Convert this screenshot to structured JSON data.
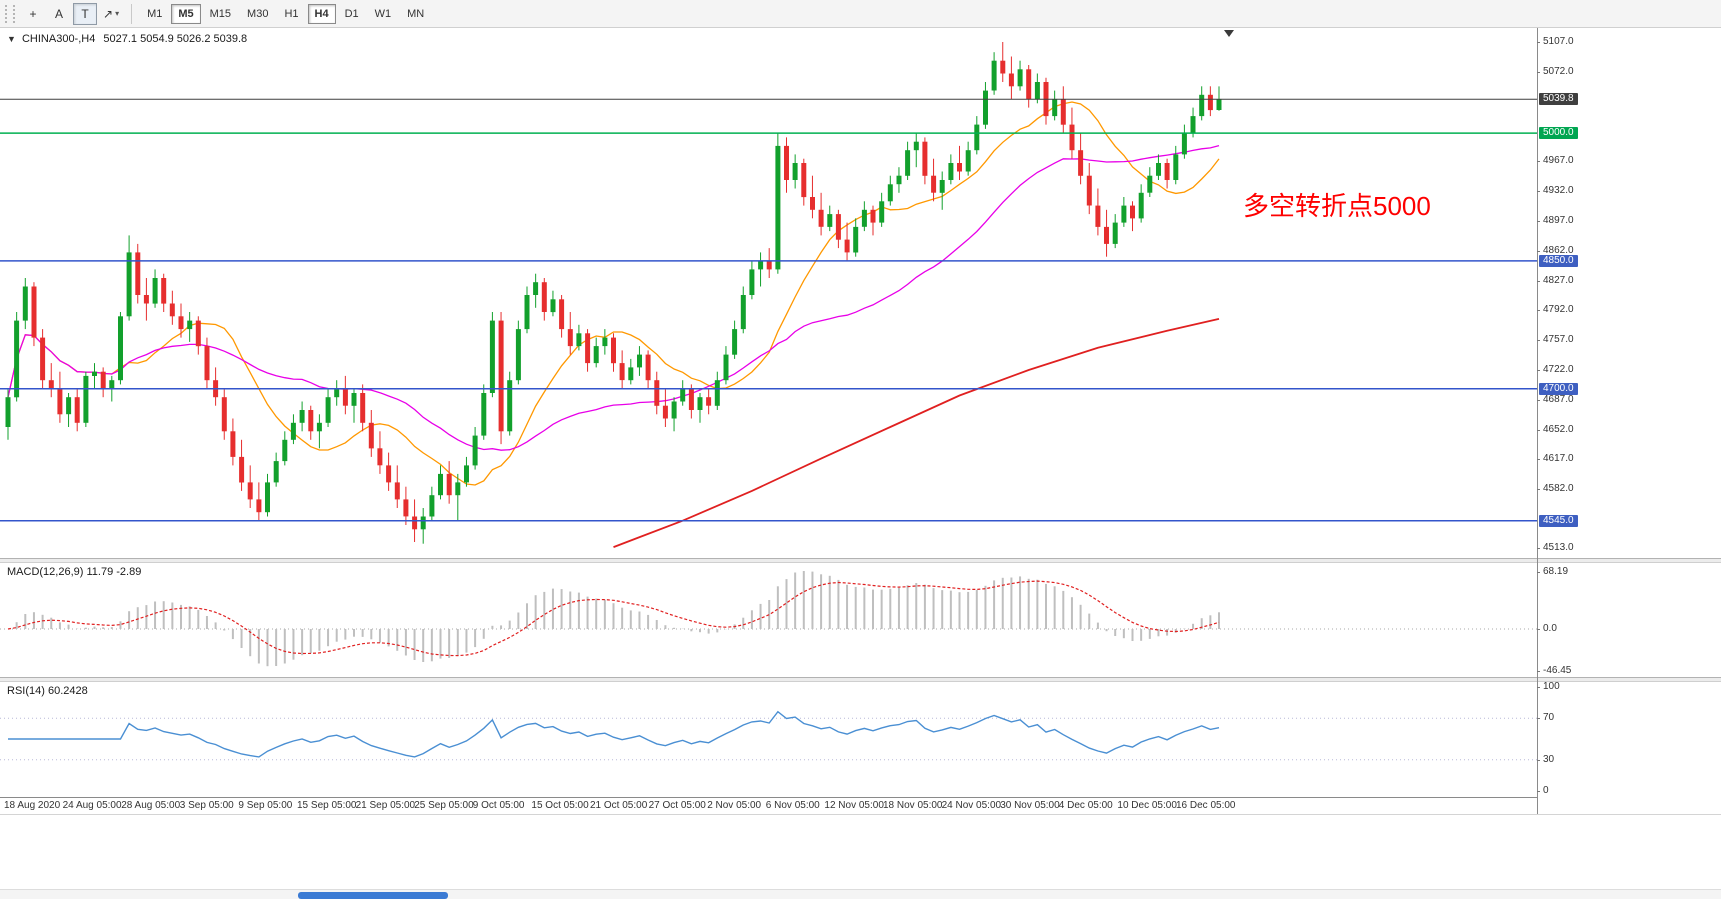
{
  "toolbar": {
    "tools": [
      {
        "name": "crosshair",
        "glyph": "+",
        "active": false,
        "dropdown": false
      },
      {
        "name": "text-label",
        "glyph": "A",
        "active": false,
        "dropdown": false
      },
      {
        "name": "text",
        "glyph": "T",
        "active": true,
        "dropdown": false
      },
      {
        "name": "arrows",
        "glyph": "↗",
        "active": false,
        "dropdown": true
      }
    ],
    "timeframes": [
      {
        "label": "M1",
        "active": false
      },
      {
        "label": "M5",
        "active": true
      },
      {
        "label": "M15",
        "active": false
      },
      {
        "label": "M30",
        "active": false
      },
      {
        "label": "H1",
        "active": false
      },
      {
        "label": "H4",
        "active": true
      },
      {
        "label": "D1",
        "active": false
      },
      {
        "label": "W1",
        "active": false
      },
      {
        "label": "MN",
        "active": false
      }
    ]
  },
  "chart": {
    "symbol_period": "CHINA300-,H4",
    "ohlc": "5027.1 5054.9 5026.2 5039.8"
  },
  "annotation": {
    "text": "多空转折点5000",
    "color": "#fe0000"
  },
  "macd_panel": {
    "label": "MACD(12,26,9) 11.79 -2.89",
    "ticks": [
      "68.19",
      "0.0",
      "-46.45"
    ]
  },
  "rsi_panel": {
    "label": "RSI(14) 60.2428",
    "ticks": [
      "100",
      "70",
      "30",
      "0"
    ]
  },
  "price_axis": {
    "ticks": [
      "5107.0",
      "5072.0",
      "4967.0",
      "4932.0",
      "4897.0",
      "4862.0",
      "4827.0",
      "4792.0",
      "4757.0",
      "4722.0",
      "4687.0",
      "4652.0",
      "4617.0",
      "4582.0",
      "4513.0"
    ],
    "tags": [
      {
        "label": "5039.8",
        "price": 5039.8,
        "bg": "#3f3f3f"
      },
      {
        "label": "5000.0",
        "price": 5000.0,
        "bg": "#00a651"
      },
      {
        "label": "4850.0",
        "price": 4850.0,
        "bg": "#3e5fc1"
      },
      {
        "label": "4700.0",
        "price": 4700.0,
        "bg": "#3e5fc1"
      },
      {
        "label": "4545.0",
        "price": 4545.0,
        "bg": "#3e5fc1"
      }
    ]
  },
  "time_axis": [
    "18 Aug 2020",
    "24 Aug 05:00",
    "28 Aug 05:00",
    "3 Sep 05:00",
    "9 Sep 05:00",
    "15 Sep 05:00",
    "21 Sep 05:00",
    "25 Sep 05:00",
    "9 Oct 05:00",
    "15 Oct 05:00",
    "21 Oct 05:00",
    "27 Oct 05:00",
    "2 Nov 05:00",
    "6 Nov 05:00",
    "12 Nov 05:00",
    "18 Nov 05:00",
    "24 Nov 05:00",
    "30 Nov 05:00",
    "4 Dec 05:00",
    "10 Dec 05:00",
    "16 Dec 05:00"
  ],
  "chart_data": {
    "type": "candlestick",
    "symbol": "CHINA300-",
    "timeframe": "H4",
    "title": "CHINA300-,H4",
    "ohlc_display": {
      "open": 5027.1,
      "high": 5054.9,
      "low": 5026.2,
      "close": 5039.8
    },
    "y_range": [
      4513.0,
      5107.0
    ],
    "colors": {
      "up": "#12a02c",
      "down": "#e62e2e",
      "ma_fast": "#ff9800",
      "ma_mid": "#e800e8",
      "ma_slow": "#e02020",
      "macd_hist": "#bfbfbf",
      "macd_signal": "#e02020",
      "rsi": "#4a8fd3",
      "hline_green": "#00b050",
      "hline_blue": "#3355cb",
      "current_line": "#3f3f3f"
    },
    "hlines": [
      {
        "price": 5039.8,
        "color": "#3f3f3f",
        "width": 1,
        "role": "current-price"
      },
      {
        "price": 5000.0,
        "color": "#00b050",
        "width": 1.5,
        "role": "resistance-support"
      },
      {
        "price": 4850.0,
        "color": "#3355cb",
        "width": 1.5,
        "role": "support"
      },
      {
        "price": 4700.0,
        "color": "#3355cb",
        "width": 1.5,
        "role": "support"
      },
      {
        "price": 4545.0,
        "color": "#3355cb",
        "width": 1.5,
        "role": "support"
      }
    ],
    "moving_averages": [
      {
        "name": "fast",
        "color": "#ff9800",
        "period": 13,
        "width": 1.3
      },
      {
        "name": "mid",
        "color": "#e800e8",
        "period": 34,
        "width": 1.3
      },
      {
        "name": "slow",
        "color": "#e02020",
        "width": 1.8,
        "points": [
          [
            70,
            4514
          ],
          [
            78,
            4545
          ],
          [
            86,
            4580
          ],
          [
            94,
            4618
          ],
          [
            102,
            4655
          ],
          [
            110,
            4692
          ],
          [
            118,
            4722
          ],
          [
            126,
            4748
          ],
          [
            134,
            4768
          ],
          [
            140,
            4782
          ]
        ]
      }
    ],
    "macd": {
      "params": [
        12,
        26,
        9
      ],
      "main_value": 11.79,
      "signal_value": -2.89,
      "range": [
        -46.45,
        68.19
      ]
    },
    "rsi": {
      "period": 14,
      "value": 60.2428,
      "levels": [
        70,
        30
      ],
      "range": [
        0,
        100
      ]
    },
    "candles": [
      [
        4655,
        4700,
        4640,
        4690
      ],
      [
        4690,
        4790,
        4685,
        4780
      ],
      [
        4780,
        4830,
        4770,
        4820
      ],
      [
        4820,
        4825,
        4750,
        4760
      ],
      [
        4760,
        4770,
        4700,
        4710
      ],
      [
        4710,
        4730,
        4690,
        4700
      ],
      [
        4700,
        4720,
        4660,
        4670
      ],
      [
        4670,
        4695,
        4655,
        4690
      ],
      [
        4690,
        4700,
        4650,
        4660
      ],
      [
        4660,
        4720,
        4655,
        4715
      ],
      [
        4715,
        4730,
        4700,
        4720
      ],
      [
        4720,
        4725,
        4690,
        4700
      ],
      [
        4700,
        4715,
        4685,
        4710
      ],
      [
        4710,
        4790,
        4705,
        4785
      ],
      [
        4785,
        4880,
        4780,
        4860
      ],
      [
        4860,
        4870,
        4800,
        4810
      ],
      [
        4810,
        4830,
        4780,
        4800
      ],
      [
        4800,
        4840,
        4795,
        4830
      ],
      [
        4830,
        4835,
        4790,
        4800
      ],
      [
        4800,
        4815,
        4775,
        4785
      ],
      [
        4785,
        4800,
        4760,
        4770
      ],
      [
        4770,
        4790,
        4755,
        4780
      ],
      [
        4780,
        4785,
        4740,
        4750
      ],
      [
        4750,
        4760,
        4700,
        4710
      ],
      [
        4710,
        4725,
        4680,
        4690
      ],
      [
        4690,
        4700,
        4640,
        4650
      ],
      [
        4650,
        4665,
        4610,
        4620
      ],
      [
        4620,
        4640,
        4580,
        4590
      ],
      [
        4590,
        4610,
        4560,
        4570
      ],
      [
        4570,
        4590,
        4545,
        4555
      ],
      [
        4555,
        4600,
        4550,
        4590
      ],
      [
        4590,
        4625,
        4585,
        4615
      ],
      [
        4615,
        4650,
        4610,
        4640
      ],
      [
        4640,
        4670,
        4635,
        4660
      ],
      [
        4660,
        4685,
        4650,
        4675
      ],
      [
        4675,
        4680,
        4640,
        4650
      ],
      [
        4650,
        4670,
        4630,
        4660
      ],
      [
        4660,
        4700,
        4655,
        4690
      ],
      [
        4690,
        4710,
        4680,
        4700
      ],
      [
        4700,
        4715,
        4670,
        4680
      ],
      [
        4680,
        4700,
        4660,
        4695
      ],
      [
        4695,
        4705,
        4650,
        4660
      ],
      [
        4660,
        4675,
        4620,
        4630
      ],
      [
        4630,
        4650,
        4600,
        4610
      ],
      [
        4610,
        4625,
        4580,
        4590
      ],
      [
        4590,
        4610,
        4560,
        4570
      ],
      [
        4570,
        4585,
        4540,
        4550
      ],
      [
        4550,
        4570,
        4520,
        4535
      ],
      [
        4535,
        4560,
        4518,
        4550
      ],
      [
        4550,
        4585,
        4545,
        4575
      ],
      [
        4575,
        4610,
        4570,
        4600
      ],
      [
        4600,
        4615,
        4565,
        4575
      ],
      [
        4575,
        4600,
        4545,
        4590
      ],
      [
        4590,
        4620,
        4585,
        4610
      ],
      [
        4610,
        4655,
        4605,
        4645
      ],
      [
        4645,
        4705,
        4640,
        4695
      ],
      [
        4695,
        4790,
        4690,
        4780
      ],
      [
        4780,
        4790,
        4635,
        4650
      ],
      [
        4650,
        4720,
        4645,
        4710
      ],
      [
        4710,
        4780,
        4705,
        4770
      ],
      [
        4770,
        4820,
        4765,
        4810
      ],
      [
        4810,
        4835,
        4795,
        4825
      ],
      [
        4825,
        4830,
        4780,
        4790
      ],
      [
        4790,
        4815,
        4785,
        4805
      ],
      [
        4805,
        4810,
        4760,
        4770
      ],
      [
        4770,
        4790,
        4740,
        4750
      ],
      [
        4750,
        4775,
        4745,
        4765
      ],
      [
        4765,
        4770,
        4720,
        4730
      ],
      [
        4730,
        4760,
        4725,
        4750
      ],
      [
        4750,
        4770,
        4740,
        4760
      ],
      [
        4760,
        4765,
        4720,
        4730
      ],
      [
        4730,
        4745,
        4700,
        4710
      ],
      [
        4710,
        4735,
        4705,
        4725
      ],
      [
        4725,
        4750,
        4715,
        4740
      ],
      [
        4740,
        4745,
        4700,
        4710
      ],
      [
        4710,
        4720,
        4670,
        4680
      ],
      [
        4680,
        4700,
        4655,
        4665
      ],
      [
        4665,
        4690,
        4650,
        4685
      ],
      [
        4685,
        4710,
        4680,
        4700
      ],
      [
        4700,
        4705,
        4665,
        4675
      ],
      [
        4675,
        4695,
        4660,
        4690
      ],
      [
        4690,
        4700,
        4670,
        4680
      ],
      [
        4680,
        4720,
        4675,
        4710
      ],
      [
        4710,
        4750,
        4705,
        4740
      ],
      [
        4740,
        4780,
        4735,
        4770
      ],
      [
        4770,
        4820,
        4765,
        4810
      ],
      [
        4810,
        4850,
        4805,
        4840
      ],
      [
        4840,
        4860,
        4820,
        4850
      ],
      [
        4850,
        4865,
        4830,
        4840
      ],
      [
        4840,
        5000,
        4835,
        4985
      ],
      [
        4985,
        4995,
        4930,
        4945
      ],
      [
        4945,
        4975,
        4935,
        4965
      ],
      [
        4965,
        4970,
        4915,
        4925
      ],
      [
        4925,
        4950,
        4900,
        4910
      ],
      [
        4910,
        4930,
        4880,
        4890
      ],
      [
        4890,
        4915,
        4885,
        4905
      ],
      [
        4905,
        4910,
        4865,
        4875
      ],
      [
        4875,
        4895,
        4850,
        4860
      ],
      [
        4860,
        4900,
        4855,
        4890
      ],
      [
        4890,
        4920,
        4885,
        4910
      ],
      [
        4910,
        4915,
        4880,
        4895
      ],
      [
        4895,
        4930,
        4890,
        4920
      ],
      [
        4920,
        4950,
        4915,
        4940
      ],
      [
        4940,
        4960,
        4930,
        4950
      ],
      [
        4950,
        4990,
        4945,
        4980
      ],
      [
        4980,
        5000,
        4960,
        4990
      ],
      [
        4990,
        4995,
        4940,
        4950
      ],
      [
        4950,
        4970,
        4920,
        4930
      ],
      [
        4930,
        4955,
        4910,
        4945
      ],
      [
        4945,
        4975,
        4940,
        4965
      ],
      [
        4965,
        4985,
        4945,
        4955
      ],
      [
        4955,
        4990,
        4950,
        4980
      ],
      [
        4980,
        5020,
        4975,
        5010
      ],
      [
        5010,
        5060,
        5005,
        5050
      ],
      [
        5050,
        5095,
        5045,
        5085
      ],
      [
        5085,
        5107,
        5060,
        5070
      ],
      [
        5070,
        5090,
        5040,
        5055
      ],
      [
        5055,
        5085,
        5050,
        5075
      ],
      [
        5075,
        5080,
        5030,
        5040
      ],
      [
        5040,
        5070,
        5035,
        5060
      ],
      [
        5060,
        5065,
        5010,
        5020
      ],
      [
        5020,
        5050,
        5015,
        5040
      ],
      [
        5040,
        5055,
        5000,
        5010
      ],
      [
        5010,
        5030,
        4970,
        4980
      ],
      [
        4980,
        5000,
        4940,
        4950
      ],
      [
        4950,
        4965,
        4905,
        4915
      ],
      [
        4915,
        4935,
        4880,
        4890
      ],
      [
        4890,
        4910,
        4855,
        4870
      ],
      [
        4870,
        4905,
        4865,
        4895
      ],
      [
        4895,
        4925,
        4890,
        4915
      ],
      [
        4915,
        4920,
        4885,
        4900
      ],
      [
        4900,
        4940,
        4895,
        4930
      ],
      [
        4930,
        4960,
        4925,
        4950
      ],
      [
        4950,
        4975,
        4945,
        4965
      ],
      [
        4965,
        4970,
        4935,
        4945
      ],
      [
        4945,
        4985,
        4940,
        4975
      ],
      [
        4975,
        5010,
        4970,
        5000
      ],
      [
        5000,
        5030,
        4995,
        5020
      ],
      [
        5020,
        5055,
        5015,
        5045
      ],
      [
        5045,
        5055,
        5020,
        5027
      ],
      [
        5027.1,
        5054.9,
        5026.2,
        5039.8
      ]
    ]
  }
}
